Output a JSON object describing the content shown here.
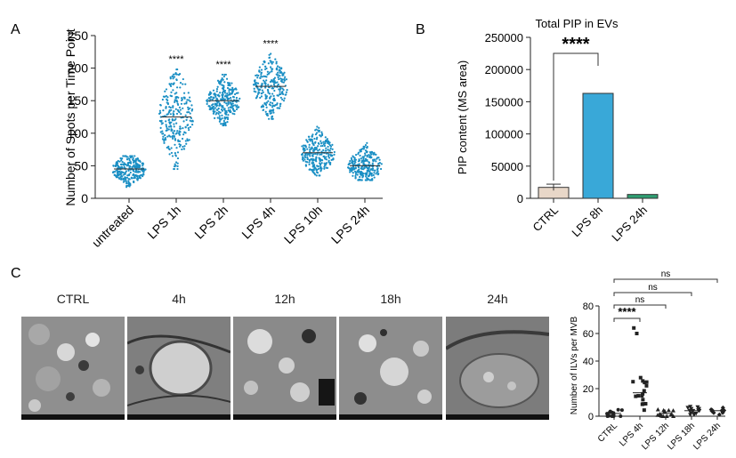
{
  "panels": {
    "A": "A",
    "B": "B",
    "C": "C"
  },
  "chart_data": [
    {
      "type": "scatter",
      "panel": "A",
      "ylabel": "Number of Spots per Time Point",
      "ylim": [
        0,
        250
      ],
      "yticks": [
        0,
        50,
        100,
        150,
        200,
        250
      ],
      "categories": [
        "untreated",
        "LPS 1h",
        "LPS 2h",
        "LPS 4h",
        "LPS 10h",
        "LPS 24h"
      ],
      "medians": [
        45,
        125,
        150,
        172,
        70,
        50
      ],
      "ranges": [
        [
          15,
          65
        ],
        [
          45,
          198
        ],
        [
          112,
          190
        ],
        [
          122,
          222
        ],
        [
          35,
          110
        ],
        [
          28,
          88
        ]
      ],
      "significance": [
        "",
        "****",
        "****",
        "****",
        "",
        ""
      ],
      "color": "#1a8fc4"
    },
    {
      "type": "bar",
      "panel": "B",
      "title": "Total PIP in EVs",
      "ylabel": "PIP content (MS area)",
      "ylim": [
        0,
        250000
      ],
      "yticks": [
        0,
        50000,
        100000,
        150000,
        200000,
        250000
      ],
      "categories": [
        "CTRL",
        "LPS 8h",
        "LPS 24h"
      ],
      "values": [
        17000,
        163000,
        6000
      ],
      "error": [
        5000,
        0,
        0
      ],
      "colors": [
        "#e8d7c8",
        "#39a8d8",
        "#2f9e72"
      ],
      "significance": "****"
    },
    {
      "type": "scatter",
      "panel": "C-right",
      "ylabel": "Number of ILVs per MVB",
      "ylim": [
        0,
        80
      ],
      "yticks": [
        0,
        20,
        40,
        60,
        80
      ],
      "categories": [
        "CTRL",
        "LPS 4h",
        "LPS 12h",
        "LPS 18h",
        "LPS 24h"
      ],
      "means": [
        2,
        17,
        2,
        4,
        4
      ],
      "comparisons": [
        {
          "from": "CTRL",
          "to": "LPS 4h",
          "label": "****"
        },
        {
          "from": "CTRL",
          "to": "LPS 12h",
          "label": "ns"
        },
        {
          "from": "CTRL",
          "to": "LPS 18h",
          "label": "ns"
        },
        {
          "from": "CTRL",
          "to": "LPS 24h",
          "label": "ns"
        }
      ]
    }
  ],
  "micrographs": [
    "CTRL",
    "4h",
    "12h",
    "18h",
    "24h"
  ]
}
